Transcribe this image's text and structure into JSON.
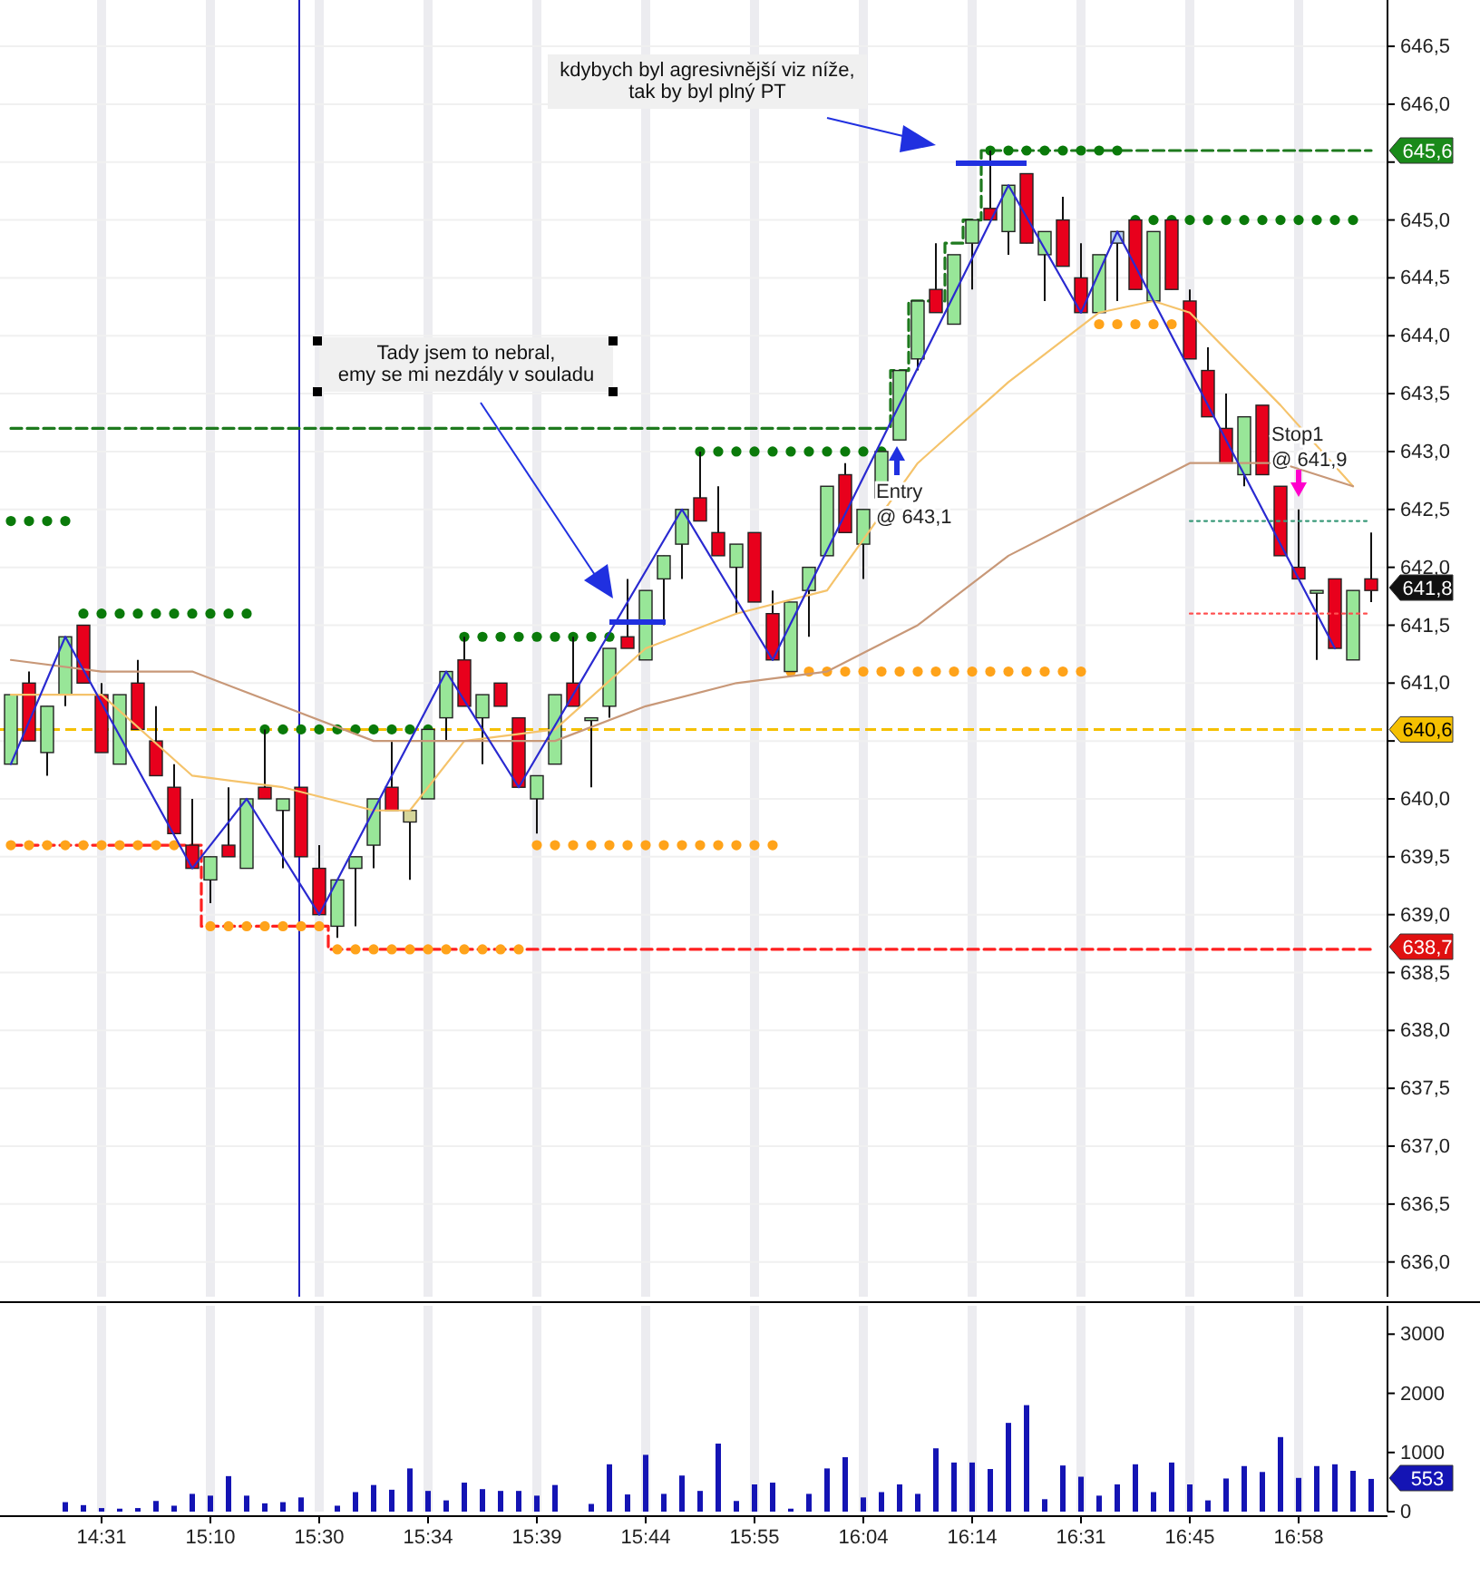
{
  "chart_data": [
    {
      "type": "candlestick",
      "categories": [
        null,
        null,
        null,
        null,
        null,
        null,
        null,
        null,
        null,
        null,
        null,
        null,
        null,
        null,
        null,
        null,
        null,
        null,
        null,
        null,
        null,
        null,
        null,
        null,
        null,
        null,
        null,
        null,
        null,
        null,
        null,
        null,
        null,
        null,
        null,
        null,
        null,
        null,
        null,
        null,
        null,
        null,
        null,
        null,
        null,
        null,
        null,
        null,
        null,
        null,
        null,
        null,
        null,
        null,
        null,
        null,
        null,
        null,
        null,
        null,
        null,
        null,
        null,
        null,
        null,
        null,
        null,
        null,
        null,
        null,
        null,
        null,
        null,
        null,
        null,
        null
      ],
      "ohlc": [
        [
          640.3,
          640.9,
          640.3,
          640.9
        ],
        [
          641.0,
          641.1,
          640.5,
          640.5
        ],
        [
          640.4,
          640.8,
          640.2,
          640.8
        ],
        [
          640.9,
          641.4,
          640.8,
          641.4
        ],
        [
          641.5,
          641.5,
          641.0,
          641.0
        ],
        [
          640.9,
          641.0,
          640.4,
          640.4
        ],
        [
          640.3,
          640.9,
          640.3,
          640.9
        ],
        [
          641.0,
          641.2,
          640.6,
          640.6
        ],
        [
          640.5,
          640.8,
          640.2,
          640.2
        ],
        [
          640.1,
          640.3,
          639.7,
          639.7
        ],
        [
          639.6,
          640.0,
          639.4,
          639.4
        ],
        [
          639.3,
          639.5,
          639.1,
          639.5
        ],
        [
          639.6,
          640.1,
          639.5,
          639.5
        ],
        [
          639.4,
          640.0,
          639.4,
          640.0
        ],
        [
          640.1,
          640.6,
          640.0,
          640.0
        ],
        [
          639.9,
          640.0,
          639.4,
          640.0
        ],
        [
          640.1,
          640.1,
          639.5,
          639.5
        ],
        [
          639.4,
          639.6,
          639.0,
          639.0
        ],
        [
          638.9,
          639.3,
          638.8,
          639.3
        ],
        [
          639.4,
          639.5,
          638.9,
          639.5
        ],
        [
          639.6,
          640.0,
          639.4,
          640.0
        ],
        [
          640.1,
          640.5,
          639.9,
          639.9
        ],
        [
          639.8,
          639.9,
          639.3,
          639.9
        ],
        [
          640.0,
          640.6,
          640.0,
          640.6
        ],
        [
          640.7,
          641.1,
          640.5,
          641.1
        ],
        [
          641.2,
          641.4,
          640.8,
          640.8
        ],
        [
          640.7,
          640.9,
          640.3,
          640.9
        ],
        [
          641.0,
          641.0,
          640.8,
          640.8
        ],
        [
          640.7,
          640.7,
          640.1,
          640.1
        ],
        [
          640.0,
          640.2,
          639.7,
          640.2
        ],
        [
          640.3,
          640.9,
          640.3,
          640.9
        ],
        [
          641.0,
          641.4,
          640.8,
          640.8
        ],
        [
          640.7,
          640.7,
          640.1,
          640.7
        ],
        [
          640.8,
          641.3,
          640.7,
          641.3
        ],
        [
          641.4,
          641.9,
          641.3,
          641.3
        ],
        [
          641.2,
          641.8,
          641.2,
          641.8
        ],
        [
          641.9,
          642.1,
          641.5,
          642.1
        ],
        [
          642.2,
          642.5,
          641.9,
          642.5
        ],
        [
          642.6,
          643.0,
          642.4,
          642.4
        ],
        [
          642.3,
          642.7,
          642.1,
          642.1
        ],
        [
          642.0,
          642.2,
          641.6,
          642.2
        ],
        [
          642.3,
          642.3,
          641.7,
          641.7
        ],
        [
          641.6,
          641.8,
          641.2,
          641.2
        ],
        [
          641.1,
          641.7,
          641.1,
          641.7
        ],
        [
          641.8,
          642.0,
          641.4,
          642.0
        ],
        [
          642.1,
          642.7,
          642.1,
          642.7
        ],
        [
          642.8,
          642.9,
          642.3,
          642.3
        ],
        [
          642.2,
          642.5,
          641.9,
          642.5
        ],
        [
          642.6,
          643.0,
          642.6,
          643.0
        ],
        [
          643.1,
          643.7,
          643.1,
          643.7
        ],
        [
          643.8,
          644.3,
          643.7,
          644.3
        ],
        [
          644.4,
          644.8,
          644.2,
          644.2
        ],
        [
          644.1,
          644.7,
          644.1,
          644.7
        ],
        [
          644.8,
          645.0,
          644.4,
          645.0
        ],
        [
          645.1,
          645.6,
          645.0,
          645.0
        ],
        [
          644.9,
          645.3,
          644.7,
          645.3
        ],
        [
          645.4,
          645.4,
          644.8,
          644.8
        ],
        [
          644.7,
          644.9,
          644.3,
          644.9
        ],
        [
          645.0,
          645.2,
          644.6,
          644.6
        ],
        [
          644.5,
          644.8,
          644.2,
          644.2
        ],
        [
          644.2,
          644.7,
          644.2,
          644.7
        ],
        [
          644.8,
          644.9,
          644.3,
          644.9
        ],
        [
          645.0,
          645.0,
          644.4,
          644.4
        ],
        [
          644.3,
          644.9,
          644.3,
          644.9
        ],
        [
          645.0,
          645.0,
          644.4,
          644.4
        ],
        [
          644.3,
          644.4,
          643.8,
          643.8
        ],
        [
          643.7,
          643.9,
          643.3,
          643.3
        ],
        [
          643.2,
          643.5,
          642.9,
          642.9
        ],
        [
          642.8,
          643.3,
          642.7,
          643.3
        ],
        [
          643.4,
          643.4,
          642.8,
          642.8
        ],
        [
          642.7,
          642.7,
          642.1,
          642.1
        ],
        [
          642.0,
          642.5,
          641.9,
          641.9
        ],
        [
          641.8,
          641.8,
          641.2,
          641.8
        ],
        [
          641.9,
          641.9,
          641.3,
          641.3
        ],
        [
          641.2,
          641.8,
          641.2,
          641.8
        ],
        [
          641.9,
          642.3,
          641.7,
          641.8
        ]
      ],
      "colors": [
        "#98e698",
        "#e8001c",
        "#98e698",
        "#98e698",
        "#e8001c",
        "#e8001c",
        "#98e698",
        "#e8001c",
        "#e8001c",
        "#e8001c",
        "#e8001c",
        "#98e698",
        "#e8001c",
        "#98e698",
        "#e8001c",
        "#98e698",
        "#e8001c",
        "#e8001c",
        "#98e698",
        "#98e698",
        "#98e698",
        "#e8001c",
        "#d6d69a",
        "#98e698",
        "#98e698",
        "#e8001c",
        "#98e698",
        "#e8001c",
        "#e8001c",
        "#98e698",
        "#98e698",
        "#e8001c",
        "#98e698",
        "#98e698",
        "#e8001c",
        "#98e698",
        "#98e698",
        "#98e698",
        "#e8001c",
        "#e8001c",
        "#98e698",
        "#e8001c",
        "#e8001c",
        "#98e698",
        "#98e698",
        "#98e698",
        "#e8001c",
        "#98e698",
        "#98e698",
        "#98e698",
        "#98e698",
        "#e8001c",
        "#98e698",
        "#98e698",
        "#e8001c",
        "#98e698",
        "#e8001c",
        "#98e698",
        "#e8001c",
        "#e8001c",
        "#98e698",
        "#b4cdee",
        "#e8001c",
        "#98e698",
        "#e8001c",
        "#e8001c",
        "#e8001c",
        "#e8001c",
        "#98e698",
        "#e8001c",
        "#e8001c",
        "#e8001c",
        "#98e698",
        "#e8001c",
        "#98e698",
        "#e8001c"
      ],
      "series": [
        {
          "type": "step",
          "color": "#1e7a1e",
          "line_style": "dashed",
          "values": [
            643.2,
            643.2,
            643.2,
            643.2,
            643.2,
            643.2,
            643.2,
            643.2,
            643.2,
            643.2,
            643.2,
            643.2,
            643.2,
            643.2,
            643.2,
            643.2,
            643.2,
            643.2,
            643.2,
            643.2,
            643.2,
            643.2,
            643.2,
            643.2,
            643.2,
            643.2,
            643.2,
            643.2,
            643.2,
            643.2,
            643.2,
            643.2,
            643.2,
            643.2,
            643.2,
            643.2,
            643.2,
            643.2,
            643.2,
            643.2,
            643.2,
            643.2,
            643.2,
            643.2,
            643.2,
            643.2,
            643.2,
            643.2,
            643.2,
            643.7,
            644.3,
            644.3,
            644.8,
            645.0,
            645.6,
            645.6,
            645.6,
            645.6,
            645.6,
            645.6,
            645.6,
            645.6,
            645.6,
            645.6,
            645.6,
            645.6,
            645.6,
            645.6,
            645.6,
            645.6,
            645.6,
            645.6,
            645.6,
            645.6,
            645.6,
            645.6
          ]
        },
        {
          "type": "step",
          "color": "#ff2020",
          "line_style": "dashed",
          "values": [
            639.6,
            639.6,
            639.6,
            639.6,
            639.6,
            639.6,
            639.6,
            639.6,
            639.6,
            639.6,
            639.6,
            638.9,
            638.9,
            638.9,
            638.9,
            638.9,
            638.9,
            638.9,
            638.7,
            638.7,
            638.7,
            638.7,
            638.7,
            638.7,
            638.7,
            638.7,
            638.7,
            638.7,
            638.7,
            638.7,
            638.7,
            638.7,
            638.7,
            638.7,
            638.7,
            638.7,
            638.7,
            638.7,
            638.7,
            638.7,
            638.7,
            638.7,
            638.7,
            638.7,
            638.7,
            638.7,
            638.7,
            638.7,
            638.7,
            638.7,
            638.7,
            638.7,
            638.7,
            638.7,
            638.7,
            638.7,
            638.7,
            638.7,
            638.7,
            638.7,
            638.7,
            638.7,
            638.7,
            638.7,
            638.7,
            638.7,
            638.7,
            638.7,
            638.7,
            638.7,
            638.7,
            638.7,
            638.7,
            638.7,
            638.7,
            638.7
          ]
        },
        {
          "type": "line",
          "color": "#f5c36b",
          "values": [
            640.9,
            null,
            null,
            null,
            null,
            640.9,
            null,
            null,
            null,
            null,
            640.2,
            null,
            null,
            null,
            null,
            640.1,
            null,
            null,
            null,
            null,
            639.9,
            null,
            639.9,
            null,
            null,
            640.5,
            null,
            null,
            null,
            null,
            640.6,
            null,
            null,
            null,
            null,
            641.3,
            null,
            null,
            null,
            null,
            641.6,
            null,
            null,
            null,
            null,
            641.8,
            null,
            null,
            null,
            null,
            642.9,
            null,
            null,
            null,
            null,
            643.6,
            null,
            null,
            null,
            null,
            644.2,
            null,
            null,
            644.3,
            null,
            644.2,
            null,
            null,
            null,
            null,
            643.4,
            null,
            null,
            null,
            642.7,
            null
          ]
        },
        {
          "type": "line",
          "color": "#c89878",
          "values": [
            641.2,
            null,
            null,
            null,
            null,
            641.1,
            null,
            null,
            null,
            null,
            641.1,
            null,
            null,
            null,
            null,
            640.8,
            null,
            null,
            null,
            null,
            640.5,
            null,
            null,
            null,
            null,
            640.5,
            null,
            null,
            null,
            null,
            640.5,
            null,
            null,
            null,
            null,
            640.8,
            null,
            null,
            null,
            null,
            641.0,
            null,
            null,
            null,
            null,
            641.1,
            null,
            null,
            null,
            null,
            641.5,
            null,
            null,
            null,
            null,
            642.1,
            null,
            null,
            null,
            null,
            642.5,
            null,
            null,
            null,
            null,
            642.9,
            null,
            null,
            null,
            null,
            642.9,
            null,
            null,
            null,
            642.7,
            null
          ]
        },
        {
          "type": "line",
          "color": "#2a2ad0",
          "values": [
            640.3,
            null,
            null,
            641.4,
            null,
            null,
            null,
            null,
            null,
            null,
            639.4,
            null,
            null,
            640.0,
            null,
            null,
            null,
            639.0,
            null,
            null,
            null,
            null,
            null,
            null,
            641.1,
            null,
            null,
            null,
            640.1,
            null,
            null,
            null,
            null,
            null,
            null,
            null,
            null,
            642.5,
            null,
            null,
            null,
            null,
            641.2,
            null,
            null,
            null,
            null,
            null,
            null,
            null,
            null,
            null,
            null,
            null,
            null,
            645.3,
            null,
            null,
            null,
            644.2,
            null,
            644.9,
            null,
            null,
            null,
            null,
            null,
            null,
            null,
            null,
            null,
            null,
            null,
            641.3,
            null,
            null
          ]
        },
        {
          "type": "line",
          "color": "#3a9a7a",
          "line_style": "dotted",
          "values": [
            null,
            null,
            null,
            null,
            null,
            null,
            null,
            null,
            null,
            null,
            null,
            null,
            null,
            null,
            null,
            null,
            null,
            null,
            null,
            null,
            null,
            null,
            null,
            null,
            null,
            null,
            null,
            null,
            null,
            null,
            null,
            null,
            null,
            null,
            null,
            null,
            null,
            null,
            null,
            null,
            null,
            null,
            null,
            null,
            null,
            null,
            null,
            null,
            null,
            null,
            null,
            null,
            null,
            null,
            null,
            null,
            null,
            null,
            null,
            null,
            null,
            null,
            null,
            null,
            null,
            642.4,
            642.4,
            642.4,
            642.4,
            642.4,
            642.4,
            642.4,
            642.4,
            642.4,
            642.4,
            642.4
          ]
        },
        {
          "type": "line",
          "color": "#ff5050",
          "line_style": "dotted",
          "values": [
            null,
            null,
            null,
            null,
            null,
            null,
            null,
            null,
            null,
            null,
            null,
            null,
            null,
            null,
            null,
            null,
            null,
            null,
            null,
            null,
            null,
            null,
            null,
            null,
            null,
            null,
            null,
            null,
            null,
            null,
            null,
            null,
            null,
            null,
            null,
            null,
            null,
            null,
            null,
            null,
            null,
            null,
            null,
            null,
            null,
            null,
            null,
            null,
            null,
            null,
            null,
            null,
            null,
            null,
            null,
            null,
            null,
            null,
            null,
            null,
            null,
            null,
            null,
            null,
            null,
            641.6,
            641.6,
            641.6,
            641.6,
            641.6,
            641.6,
            641.6,
            641.6,
            641.6,
            641.6,
            641.6
          ]
        },
        {
          "type": "scatter",
          "color": "#0a7a0a",
          "marker": "circle",
          "values": [
            642.4,
            642.4,
            642.4,
            642.4,
            641.6,
            641.6,
            641.6,
            641.6,
            641.6,
            641.6,
            641.6,
            641.6,
            641.6,
            641.6,
            640.6,
            640.6,
            640.6,
            640.6,
            640.6,
            640.6,
            640.6,
            640.6,
            640.6,
            640.6,
            null,
            641.4,
            641.4,
            641.4,
            641.4,
            641.4,
            641.4,
            641.4,
            641.4,
            641.4,
            null,
            null,
            null,
            null,
            643.0,
            643.0,
            643.0,
            643.0,
            643.0,
            643.0,
            643.0,
            643.0,
            643.0,
            643.0,
            643.0,
            null,
            null,
            null,
            null,
            null,
            645.6,
            645.6,
            645.6,
            645.6,
            645.6,
            645.6,
            645.6,
            645.6,
            645.0,
            645.0,
            645.0,
            645.0,
            645.0,
            645.0,
            645.0,
            645.0,
            645.0,
            645.0,
            645.0,
            645.0,
            645.0,
            null
          ]
        },
        {
          "type": "scatter",
          "color": "#ffa31a",
          "marker": "circle",
          "values": [
            639.6,
            639.6,
            639.6,
            639.6,
            639.6,
            639.6,
            639.6,
            639.6,
            639.6,
            639.6,
            null,
            638.9,
            638.9,
            638.9,
            638.9,
            638.9,
            638.9,
            638.9,
            638.7,
            638.7,
            638.7,
            638.7,
            638.7,
            638.7,
            638.7,
            638.7,
            638.7,
            638.7,
            638.7,
            639.6,
            639.6,
            639.6,
            639.6,
            639.6,
            639.6,
            639.6,
            639.6,
            639.6,
            639.6,
            639.6,
            639.6,
            639.6,
            639.6,
            641.1,
            641.1,
            641.1,
            641.1,
            641.1,
            641.1,
            641.1,
            641.1,
            641.1,
            641.1,
            641.1,
            641.1,
            641.1,
            641.1,
            641.1,
            641.1,
            641.1,
            644.1,
            644.1,
            644.1,
            644.1,
            644.1,
            null,
            null,
            null,
            null,
            null,
            null,
            null,
            null,
            null,
            null,
            null
          ]
        }
      ],
      "ref_lines": [
        {
          "axis": "y",
          "value": 640.6,
          "label": "640,6",
          "color": "#f5c000",
          "line_style": "dashed"
        }
      ],
      "annotations": [
        "kdybych byl agresivnější viz níže,\ntak by byl plný PT",
        "Tady jsem to nebral,\nemy se mi nezdály v souladu",
        {
          "text": "Entry\n@ 643,1",
          "y": 643.1
        },
        "Stop1\n@ 641,9",
        "645,6",
        "641,8",
        "638,7"
      ],
      "ylim": [
        635.7,
        646.9
      ],
      "yticks": [
        {
          "value": 636.0,
          "label": "636,0"
        },
        {
          "value": 636.5,
          "label": "636,5"
        },
        {
          "value": 637.0,
          "label": "637,0"
        },
        {
          "value": 637.5,
          "label": "637,5"
        },
        {
          "value": 638.0,
          "label": "638,0"
        },
        {
          "value": 638.5,
          "label": "638,5"
        },
        {
          "value": 639.0,
          "label": "639,0"
        },
        {
          "value": 639.5,
          "label": "639,5"
        },
        {
          "value": 640.0,
          "label": "640,0"
        },
        {
          "value": 640.5,
          "label": null
        },
        {
          "value": 641.0,
          "label": "641,0"
        },
        {
          "value": 641.5,
          "label": "641,5"
        },
        {
          "value": 642.0,
          "label": "642,0"
        },
        {
          "value": 642.5,
          "label": "642,5"
        },
        {
          "value": 643.0,
          "label": "643,0"
        },
        {
          "value": 643.5,
          "label": "643,5"
        },
        {
          "value": 644.0,
          "label": "644,0"
        },
        {
          "value": 644.5,
          "label": "644,5"
        },
        {
          "value": 645.0,
          "label": "645,0"
        },
        {
          "value": 645.5,
          "label": null
        },
        {
          "value": 646.0,
          "label": "646,0"
        },
        {
          "value": 646.5,
          "label": "646,5"
        }
      ],
      "grid": true,
      "tick_labels": "y"
    },
    {
      "type": "bar",
      "categories": [
        null,
        null,
        null,
        null,
        null,
        "14:31",
        null,
        null,
        null,
        null,
        null,
        "15:10",
        null,
        null,
        null,
        null,
        null,
        "15:30",
        null,
        null,
        null,
        null,
        null,
        "15:34",
        null,
        null,
        null,
        null,
        null,
        "15:39",
        null,
        null,
        null,
        null,
        null,
        "15:44",
        null,
        null,
        null,
        null,
        null,
        "15:55",
        null,
        null,
        null,
        null,
        null,
        "16:04",
        null,
        null,
        null,
        null,
        null,
        "16:14",
        null,
        null,
        null,
        null,
        null,
        "16:31",
        null,
        null,
        null,
        null,
        null,
        "16:45",
        null,
        null,
        null,
        null,
        null,
        "16:58",
        null,
        null,
        null,
        null
      ],
      "values": [
        null,
        null,
        null,
        160,
        110,
        60,
        50,
        60,
        180,
        100,
        300,
        270,
        600,
        270,
        140,
        160,
        240,
        null,
        100,
        330,
        450,
        370,
        730,
        350,
        190,
        490,
        380,
        350,
        350,
        270,
        450,
        null,
        130,
        800,
        290,
        960,
        300,
        610,
        350,
        1150,
        180,
        460,
        490,
        50,
        300,
        730,
        920,
        240,
        330,
        460,
        300,
        1070,
        830,
        830,
        720,
        1500,
        1800,
        210,
        780,
        590,
        270,
        460,
        800,
        330,
        830,
        460,
        190,
        560,
        770,
        670,
        1260,
        570,
        770,
        800,
        690,
        553
      ],
      "color": "#1414b4",
      "annotations": [
        "553"
      ],
      "ylim": [
        0,
        3480
      ],
      "yticks": [
        0,
        1000,
        2000,
        3000
      ],
      "grid": "x"
    }
  ]
}
